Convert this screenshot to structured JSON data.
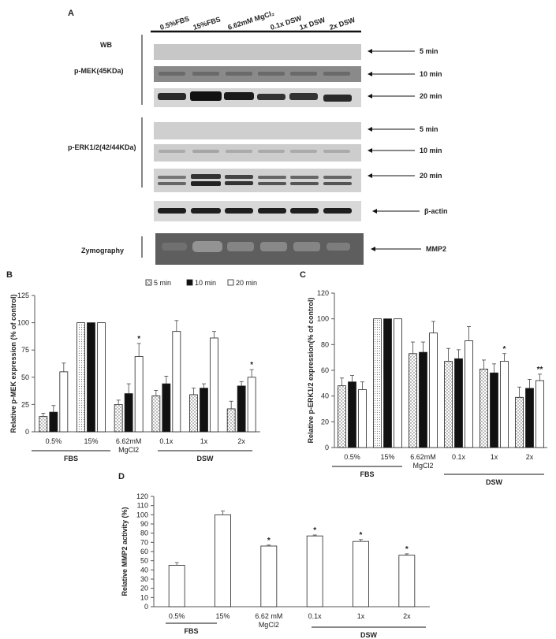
{
  "panels": {
    "a": {
      "letter": "A"
    },
    "b": {
      "letter": "B"
    },
    "c": {
      "letter": "C"
    },
    "d": {
      "letter": "D"
    }
  },
  "blots": {
    "lanes": [
      "0.5%FBS",
      "15%FBS",
      "6.62mM MgCl₂",
      "0.1x DSW",
      "1x DSW",
      "2x DSW"
    ],
    "wb_label": "WB",
    "pmek_label": "p-MEK(45KDa)",
    "perk_label": "p-ERK1/2(42/44KDa)",
    "zymo_label": "Zymography",
    "times": [
      "5 min",
      "10 min",
      "20 min"
    ],
    "actin_label": "β-actin",
    "mmp2_label": "MMP2"
  },
  "chart_data": [
    {
      "id": "B",
      "type": "bar",
      "ylabel": "Relative p-MEK expression  (% of control)",
      "ylim": [
        0,
        125
      ],
      "yticks": [
        0,
        25,
        50,
        75,
        100,
        125
      ],
      "categories": [
        "0.5%",
        "15%",
        "6.62mM\nMgCl2",
        "0.1x",
        "1x",
        "2x"
      ],
      "groups": [
        {
          "label": "FBS",
          "span": [
            0,
            1
          ]
        },
        {
          "label": "DSW",
          "span": [
            3,
            5
          ]
        }
      ],
      "legend_position": "top-right",
      "series": [
        {
          "name": "5 min",
          "values": [
            14,
            100,
            25,
            33,
            34,
            21
          ],
          "errors": [
            3,
            0,
            4,
            5,
            6,
            7
          ],
          "stars": [
            "",
            "",
            "",
            "",
            "",
            ""
          ]
        },
        {
          "name": "10 min",
          "values": [
            18,
            100,
            35,
            44,
            40,
            42
          ],
          "errors": [
            6,
            0,
            9,
            7,
            4,
            4
          ],
          "stars": [
            "",
            "",
            "",
            "",
            "",
            ""
          ]
        },
        {
          "name": "20 min",
          "values": [
            55,
            100,
            69,
            92,
            86,
            50
          ],
          "errors": [
            8,
            0,
            12,
            10,
            6,
            7
          ],
          "stars": [
            "",
            "",
            "*",
            "",
            "",
            "*"
          ]
        }
      ]
    },
    {
      "id": "C",
      "type": "bar",
      "ylabel": "Relative p-ERK1/2 expression(% of control)",
      "ylim": [
        0,
        120
      ],
      "yticks": [
        0,
        20,
        40,
        60,
        80,
        100,
        120
      ],
      "categories": [
        "0.5%",
        "15%",
        "6.62mM\nMgCl2",
        "0.1x",
        "1x",
        "2x"
      ],
      "groups": [
        {
          "label": "FBS",
          "span": [
            0,
            1
          ]
        },
        {
          "label": "DSW",
          "span": [
            3,
            5
          ]
        }
      ],
      "legend_position": "none",
      "series": [
        {
          "name": "5 min",
          "values": [
            48,
            100,
            73,
            67,
            61,
            39
          ],
          "errors": [
            6,
            0,
            9,
            10,
            7,
            8
          ],
          "stars": [
            "",
            "",
            "",
            "",
            "",
            ""
          ]
        },
        {
          "name": "10 min",
          "values": [
            51,
            100,
            74,
            69,
            58,
            46
          ],
          "errors": [
            5,
            0,
            8,
            7,
            7,
            7
          ],
          "stars": [
            "",
            "",
            "",
            "",
            "",
            ""
          ]
        },
        {
          "name": "20 min",
          "values": [
            45,
            100,
            89,
            83,
            67,
            52
          ],
          "errors": [
            6,
            0,
            9,
            11,
            6,
            5
          ],
          "stars": [
            "",
            "",
            "",
            "",
            "*",
            "**"
          ]
        }
      ]
    },
    {
      "id": "D",
      "type": "bar",
      "ylabel": "Relative MMP2 activity (%)",
      "ylim": [
        0,
        120
      ],
      "yticks": [
        0,
        10,
        20,
        30,
        40,
        50,
        60,
        70,
        80,
        90,
        100,
        110,
        120
      ],
      "categories": [
        "0.5%",
        "15%",
        "6.62 mM\nMgCl2",
        "0.1x",
        "1x",
        "2x"
      ],
      "groups": [
        {
          "label": "FBS",
          "span": [
            0,
            1
          ]
        },
        {
          "label": "DSW",
          "span": [
            3,
            5
          ]
        }
      ],
      "legend_position": "none",
      "series": [
        {
          "name": "MMP2",
          "values": [
            45,
            100,
            66,
            77,
            71,
            56
          ],
          "errors": [
            3,
            4,
            1,
            1,
            2,
            1.5
          ],
          "stars": [
            "",
            "",
            "*",
            "*",
            "*",
            "*"
          ]
        }
      ]
    }
  ]
}
